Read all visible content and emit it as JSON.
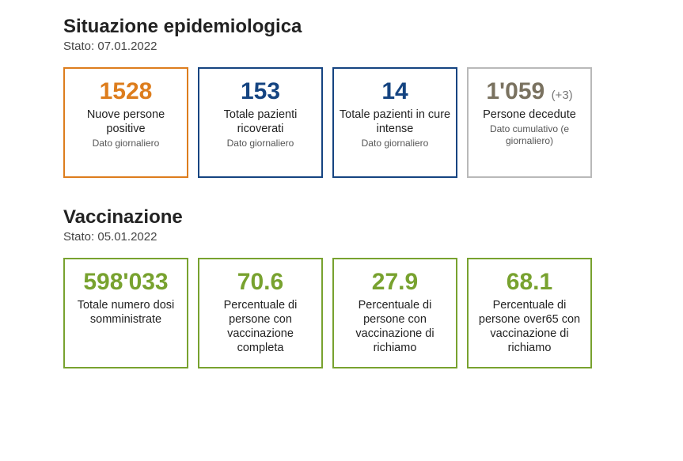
{
  "epi": {
    "title": "Situazione epidemiologica",
    "status": "Stato: 07.01.2022",
    "cards": [
      {
        "value": "1528",
        "delta": "",
        "label": "Nuove persone positive",
        "sub": "Dato giornaliero",
        "colorClass": "c-orange"
      },
      {
        "value": "153",
        "delta": "",
        "label": "Totale pazienti ricoverati",
        "sub": "Dato giornaliero",
        "colorClass": "c-navy"
      },
      {
        "value": "14",
        "delta": "",
        "label": "Totale pazienti in cure intense",
        "sub": "Dato giornaliero",
        "colorClass": "c-navy"
      },
      {
        "value": "1'059",
        "delta": "(+3)",
        "label": "Persone decedute",
        "sub": "Dato cumulativo (e giornaliero)",
        "colorClass": "c-gray"
      }
    ]
  },
  "vac": {
    "title": "Vaccinazione",
    "status": "Stato: 05.01.2022",
    "cards": [
      {
        "value": "598'033",
        "delta": "",
        "label": "Totale numero dosi somministrate",
        "sub": "",
        "colorClass": "c-green"
      },
      {
        "value": "70.6",
        "delta": "",
        "label": "Percentuale di persone con vaccinazione completa",
        "sub": "",
        "colorClass": "c-green"
      },
      {
        "value": "27.9",
        "delta": "",
        "label": "Percentuale di persone con vaccinazione di richiamo",
        "sub": "",
        "colorClass": "c-green"
      },
      {
        "value": "68.1",
        "delta": "",
        "label": "Percentuale di persone over65 con vaccinazione di richiamo",
        "sub": "",
        "colorClass": "c-green"
      }
    ]
  },
  "colors": {
    "orange": "#dd7d1d",
    "navy": "#154481",
    "gray_border": "#b9b9b9",
    "gray_value": "#7a7260",
    "green": "#78a22f",
    "background": "#ffffff"
  }
}
